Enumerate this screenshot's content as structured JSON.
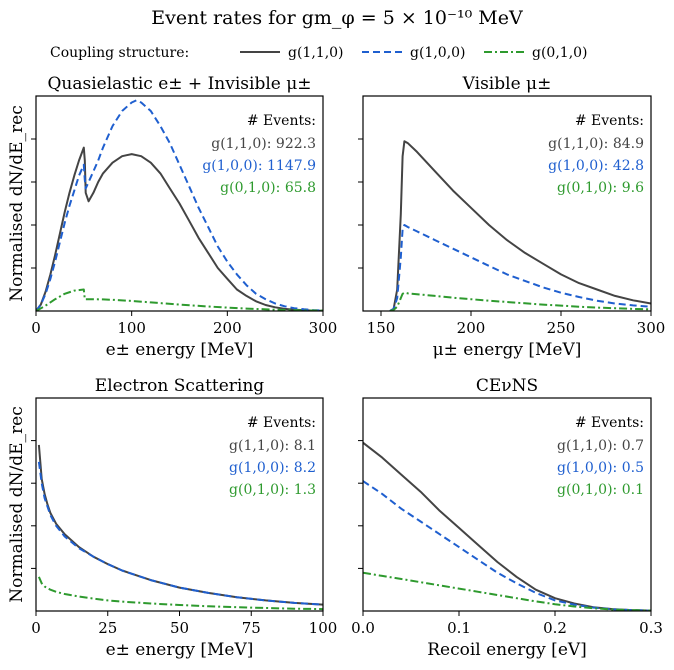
{
  "figure": {
    "title": "Event rates for gm_φ = 5 × 10⁻¹⁰ MeV",
    "legend_label": "Coupling structure:"
  },
  "series_styles": [
    {
      "key": "g110",
      "label": "g(1,1,0)",
      "color": "#444444",
      "dash": "solid"
    },
    {
      "key": "g100",
      "label": "g(1,0,0)",
      "color": "#1f5fcf",
      "dash": "dashed"
    },
    {
      "key": "g010",
      "label": "g(0,1,0)",
      "color": "#2e9a2e",
      "dash": "dashdot"
    }
  ],
  "events_header": "# Events:",
  "chart_data": [
    {
      "type": "line",
      "title": "Quasielastic e± + Invisible μ±",
      "xlabel": "e± energy [MeV]",
      "ylabel": "Normalised dN/dE_rec",
      "xlim": [
        0,
        300
      ],
      "ylim": [
        0,
        1.0
      ],
      "xticks": [
        0,
        100,
        200,
        300
      ],
      "ytick_positions": [
        0.2,
        0.4,
        0.6,
        0.8
      ],
      "events": [
        {
          "label": "g(1,1,0): 922.3"
        },
        {
          "label": "g(1,0,0): 1147.9"
        },
        {
          "label": "g(0,1,0): 65.8"
        }
      ],
      "series": [
        {
          "name": "g(1,1,0)",
          "x": [
            0,
            5,
            10,
            15,
            20,
            25,
            30,
            35,
            40,
            45,
            50,
            51,
            52,
            55,
            60,
            65,
            70,
            80,
            90,
            100,
            110,
            120,
            130,
            140,
            150,
            160,
            170,
            180,
            190,
            200,
            210,
            220,
            230,
            240,
            250,
            260,
            270,
            280,
            290,
            300
          ],
          "y": [
            0,
            0.03,
            0.09,
            0.17,
            0.26,
            0.36,
            0.46,
            0.55,
            0.63,
            0.7,
            0.76,
            0.7,
            0.55,
            0.51,
            0.55,
            0.6,
            0.64,
            0.69,
            0.72,
            0.73,
            0.72,
            0.69,
            0.64,
            0.57,
            0.5,
            0.42,
            0.34,
            0.27,
            0.2,
            0.15,
            0.1,
            0.07,
            0.045,
            0.028,
            0.017,
            0.01,
            0.006,
            0.004,
            0.002,
            0.001
          ]
        },
        {
          "name": "g(1,0,0)",
          "x": [
            0,
            5,
            10,
            15,
            20,
            25,
            30,
            35,
            40,
            45,
            50,
            51,
            52,
            55,
            60,
            65,
            70,
            80,
            90,
            100,
            105,
            110,
            120,
            130,
            140,
            150,
            160,
            170,
            180,
            190,
            200,
            210,
            220,
            230,
            240,
            250,
            260,
            270,
            280,
            290,
            300
          ],
          "y": [
            0,
            0.03,
            0.08,
            0.15,
            0.23,
            0.32,
            0.41,
            0.49,
            0.56,
            0.63,
            0.68,
            0.61,
            0.57,
            0.6,
            0.65,
            0.7,
            0.76,
            0.86,
            0.93,
            0.97,
            0.98,
            0.97,
            0.93,
            0.86,
            0.78,
            0.68,
            0.58,
            0.48,
            0.39,
            0.3,
            0.23,
            0.17,
            0.12,
            0.08,
            0.055,
            0.035,
            0.022,
            0.013,
            0.008,
            0.004,
            0.002
          ]
        },
        {
          "name": "g(0,1,0)",
          "x": [
            0,
            10,
            20,
            30,
            40,
            50,
            51,
            60,
            70,
            80,
            100,
            120,
            150,
            180,
            200,
            220,
            250,
            280,
            300
          ],
          "y": [
            0,
            0.025,
            0.055,
            0.08,
            0.095,
            0.1,
            0.055,
            0.055,
            0.054,
            0.052,
            0.047,
            0.04,
            0.03,
            0.021,
            0.016,
            0.011,
            0.006,
            0.003,
            0.002
          ]
        }
      ]
    },
    {
      "type": "line",
      "title": "Visible μ±",
      "xlabel": "μ± energy [MeV]",
      "ylabel": "",
      "xlim": [
        140,
        300
      ],
      "ylim": [
        0,
        1.0
      ],
      "xticks": [
        150,
        200,
        250,
        300
      ],
      "ytick_positions": [
        0.2,
        0.4,
        0.6,
        0.8
      ],
      "events": [
        {
          "label": "g(1,1,0): 84.9"
        },
        {
          "label": "g(1,0,0): 42.8"
        },
        {
          "label": "g(0,1,0): 9.6"
        }
      ],
      "series": [
        {
          "name": "g(1,1,0)",
          "x": [
            155,
            157,
            159,
            161,
            162,
            163,
            165,
            170,
            180,
            190,
            200,
            210,
            220,
            230,
            240,
            250,
            260,
            270,
            280,
            290,
            300
          ],
          "y": [
            0,
            0.01,
            0.1,
            0.45,
            0.72,
            0.79,
            0.78,
            0.74,
            0.65,
            0.56,
            0.48,
            0.4,
            0.33,
            0.27,
            0.22,
            0.17,
            0.13,
            0.1,
            0.07,
            0.05,
            0.035
          ]
        },
        {
          "name": "g(1,0,0)",
          "x": [
            155,
            157,
            159,
            161,
            162,
            163,
            165,
            170,
            180,
            190,
            200,
            210,
            220,
            230,
            240,
            250,
            260,
            270,
            280,
            290,
            300
          ],
          "y": [
            0,
            0.01,
            0.06,
            0.25,
            0.38,
            0.4,
            0.39,
            0.37,
            0.33,
            0.29,
            0.25,
            0.21,
            0.17,
            0.14,
            0.11,
            0.085,
            0.065,
            0.048,
            0.035,
            0.026,
            0.02
          ]
        },
        {
          "name": "g(0,1,0)",
          "x": [
            155,
            157,
            159,
            161,
            162,
            163,
            165,
            170,
            180,
            190,
            200,
            210,
            220,
            230,
            240,
            250,
            260,
            270,
            280,
            290,
            300
          ],
          "y": [
            0,
            0.005,
            0.02,
            0.06,
            0.08,
            0.085,
            0.082,
            0.078,
            0.07,
            0.062,
            0.055,
            0.048,
            0.042,
            0.036,
            0.03,
            0.025,
            0.02,
            0.016,
            0.013,
            0.01,
            0.008
          ]
        }
      ]
    },
    {
      "type": "line",
      "title": "Electron Scattering",
      "xlabel": "e± energy [MeV]",
      "ylabel": "Normalised dN/dE_rec",
      "xlim": [
        0,
        100
      ],
      "ylim": [
        0,
        1.0
      ],
      "xticks": [
        0,
        25,
        50,
        75,
        100
      ],
      "ytick_positions": [
        0.2,
        0.4,
        0.6,
        0.8
      ],
      "events": [
        {
          "label": "g(1,1,0): 8.1"
        },
        {
          "label": "g(1,0,0): 8.2"
        },
        {
          "label": "g(0,1,0): 1.3"
        }
      ],
      "series": [
        {
          "name": "g(1,1,0)",
          "x": [
            1,
            2,
            3,
            4,
            5,
            7,
            10,
            15,
            20,
            25,
            30,
            40,
            50,
            60,
            70,
            80,
            90,
            100
          ],
          "y": [
            0.78,
            0.62,
            0.55,
            0.5,
            0.46,
            0.41,
            0.36,
            0.3,
            0.255,
            0.22,
            0.19,
            0.145,
            0.11,
            0.085,
            0.065,
            0.05,
            0.038,
            0.03
          ]
        },
        {
          "name": "g(1,0,0)",
          "x": [
            1,
            2,
            3,
            4,
            5,
            7,
            10,
            15,
            20,
            25,
            30,
            40,
            50,
            60,
            70,
            80,
            90,
            100
          ],
          "y": [
            0.7,
            0.6,
            0.53,
            0.49,
            0.45,
            0.4,
            0.35,
            0.295,
            0.255,
            0.22,
            0.19,
            0.145,
            0.11,
            0.085,
            0.065,
            0.05,
            0.038,
            0.03
          ]
        },
        {
          "name": "g(0,1,0)",
          "x": [
            1,
            2,
            3,
            5,
            7,
            10,
            15,
            20,
            25,
            30,
            40,
            50,
            60,
            70,
            80,
            90,
            100
          ],
          "y": [
            0.16,
            0.13,
            0.115,
            0.1,
            0.09,
            0.08,
            0.068,
            0.058,
            0.05,
            0.044,
            0.035,
            0.028,
            0.022,
            0.018,
            0.014,
            0.011,
            0.009
          ]
        }
      ]
    },
    {
      "type": "line",
      "title": "CEνNS",
      "xlabel": "Recoil energy [eV]",
      "ylabel": "",
      "xlim": [
        0,
        0.3
      ],
      "ylim": [
        0,
        1.0
      ],
      "xticks": [
        0.0,
        0.1,
        0.2,
        0.3
      ],
      "ytick_positions": [
        0.2,
        0.4,
        0.6,
        0.8
      ],
      "events": [
        {
          "label": "g(1,1,0): 0.7"
        },
        {
          "label": "g(1,0,0): 0.5"
        },
        {
          "label": "g(0,1,0): 0.1"
        }
      ],
      "series": [
        {
          "name": "g(1,1,0)",
          "x": [
            0,
            0.02,
            0.04,
            0.06,
            0.08,
            0.1,
            0.12,
            0.14,
            0.16,
            0.18,
            0.2,
            0.22,
            0.24,
            0.26,
            0.28,
            0.3
          ],
          "y": [
            0.79,
            0.72,
            0.64,
            0.56,
            0.47,
            0.39,
            0.31,
            0.23,
            0.16,
            0.1,
            0.06,
            0.035,
            0.018,
            0.009,
            0.004,
            0.002
          ]
        },
        {
          "name": "g(1,0,0)",
          "x": [
            0,
            0.02,
            0.04,
            0.06,
            0.08,
            0.1,
            0.12,
            0.14,
            0.16,
            0.18,
            0.2,
            0.22,
            0.24,
            0.26,
            0.28,
            0.3
          ],
          "y": [
            0.61,
            0.55,
            0.48,
            0.42,
            0.36,
            0.3,
            0.24,
            0.18,
            0.13,
            0.085,
            0.05,
            0.03,
            0.016,
            0.008,
            0.004,
            0.002
          ]
        },
        {
          "name": "g(0,1,0)",
          "x": [
            0,
            0.02,
            0.04,
            0.06,
            0.08,
            0.1,
            0.12,
            0.14,
            0.16,
            0.18,
            0.2,
            0.22,
            0.24,
            0.26,
            0.28,
            0.3
          ],
          "y": [
            0.18,
            0.165,
            0.15,
            0.135,
            0.12,
            0.105,
            0.09,
            0.075,
            0.06,
            0.045,
            0.032,
            0.021,
            0.013,
            0.007,
            0.004,
            0.002
          ]
        }
      ]
    }
  ]
}
